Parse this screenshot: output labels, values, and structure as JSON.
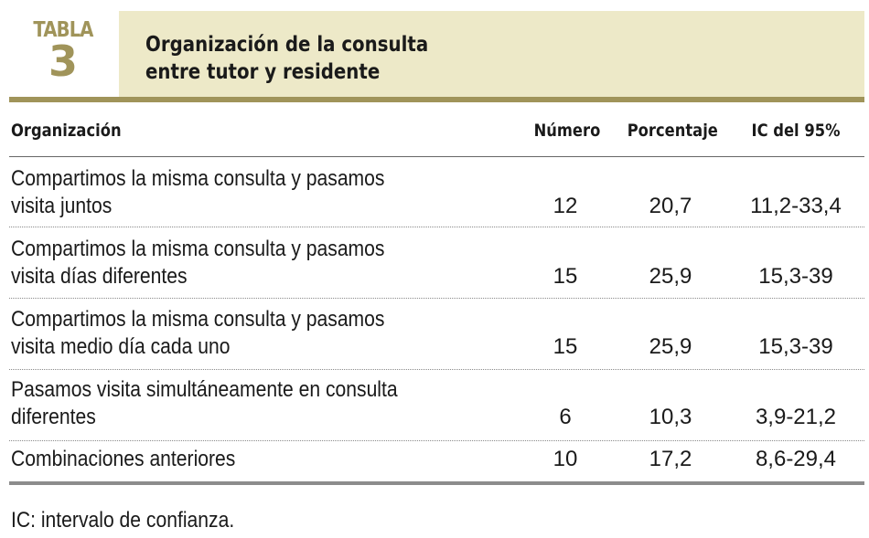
{
  "table_label": {
    "word": "TABLA",
    "number": "3"
  },
  "title": {
    "line1": "Organización de la consulta",
    "line2": "entre tutor y residente"
  },
  "columns": {
    "organization": "Organización",
    "number": "Número",
    "percentage": "Porcentaje",
    "ci": "IC del 95%"
  },
  "rows": [
    {
      "line1": "Compartimos la misma consulta y pasamos",
      "line2": "visita juntos",
      "number": "12",
      "percentage": "20,7",
      "ci": "11,2-33,4"
    },
    {
      "line1": "Compartimos la misma consulta y pasamos",
      "line2": "visita días diferentes",
      "number": "15",
      "percentage": "25,9",
      "ci": "15,3-39"
    },
    {
      "line1": "Compartimos la misma consulta y pasamos",
      "line2": "visita medio día cada uno",
      "number": "15",
      "percentage": "25,9",
      "ci": "15,3-39"
    },
    {
      "line1": "Pasamos visita simultáneamente en consulta",
      "line2": "diferentes",
      "number": "6",
      "percentage": "10,3",
      "ci": "3,9-21,2"
    },
    {
      "line1": "Combinaciones anteriores",
      "number": "10",
      "percentage": "17,2",
      "ci": "8,6-29,4"
    }
  ],
  "footnote": "IC: intervalo de confianza.",
  "colors": {
    "accent": "#a0945a",
    "title_band": "#ede9c8",
    "rule": "#8c8c8c"
  }
}
